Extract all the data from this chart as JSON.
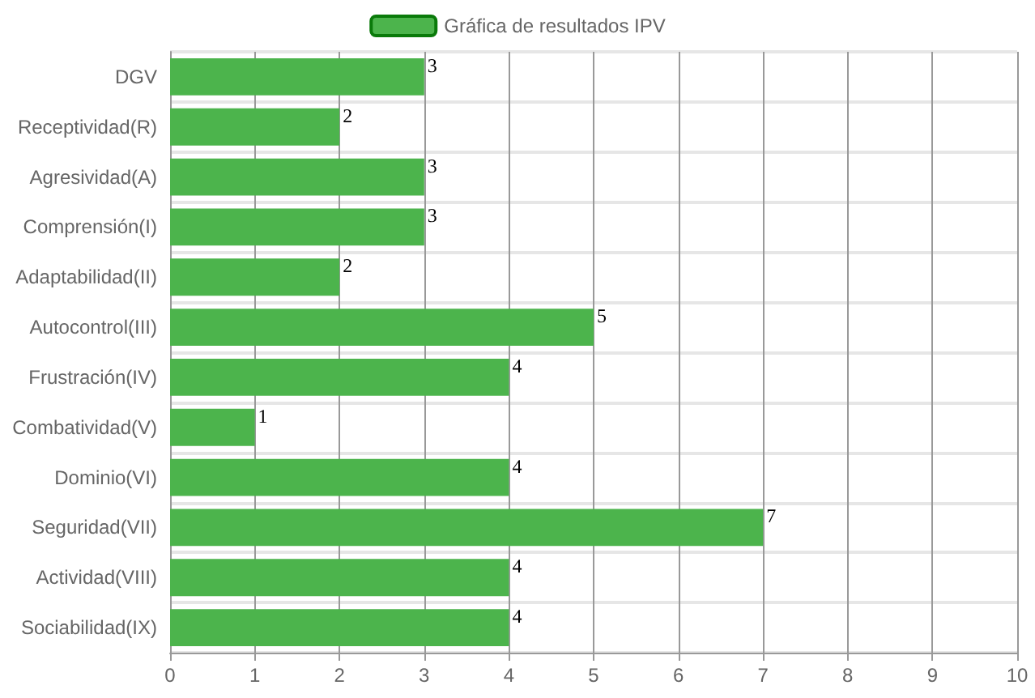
{
  "chart_data": {
    "type": "bar",
    "orientation": "horizontal",
    "categories": [
      "DGV",
      "Receptividad(R)",
      "Agresividad(A)",
      "Comprensión(I)",
      "Adaptabilidad(II)",
      "Autocontrol(III)",
      "Frustración(IV)",
      "Combatividad(V)",
      "Dominio(VI)",
      "Seguridad(VII)",
      "Actividad(VIII)",
      "Sociabilidad(IX)"
    ],
    "series": [
      {
        "name": "Gráfica de resultados IPV",
        "color": "#4cb44c",
        "values": [
          3,
          2,
          3,
          3,
          2,
          5,
          4,
          1,
          4,
          7,
          4,
          4
        ]
      }
    ],
    "xlim": [
      0,
      10
    ],
    "xticks": [
      0,
      1,
      2,
      3,
      4,
      5,
      6,
      7,
      8,
      9,
      10
    ],
    "grid": true,
    "legend": "top",
    "data_labels": true
  }
}
